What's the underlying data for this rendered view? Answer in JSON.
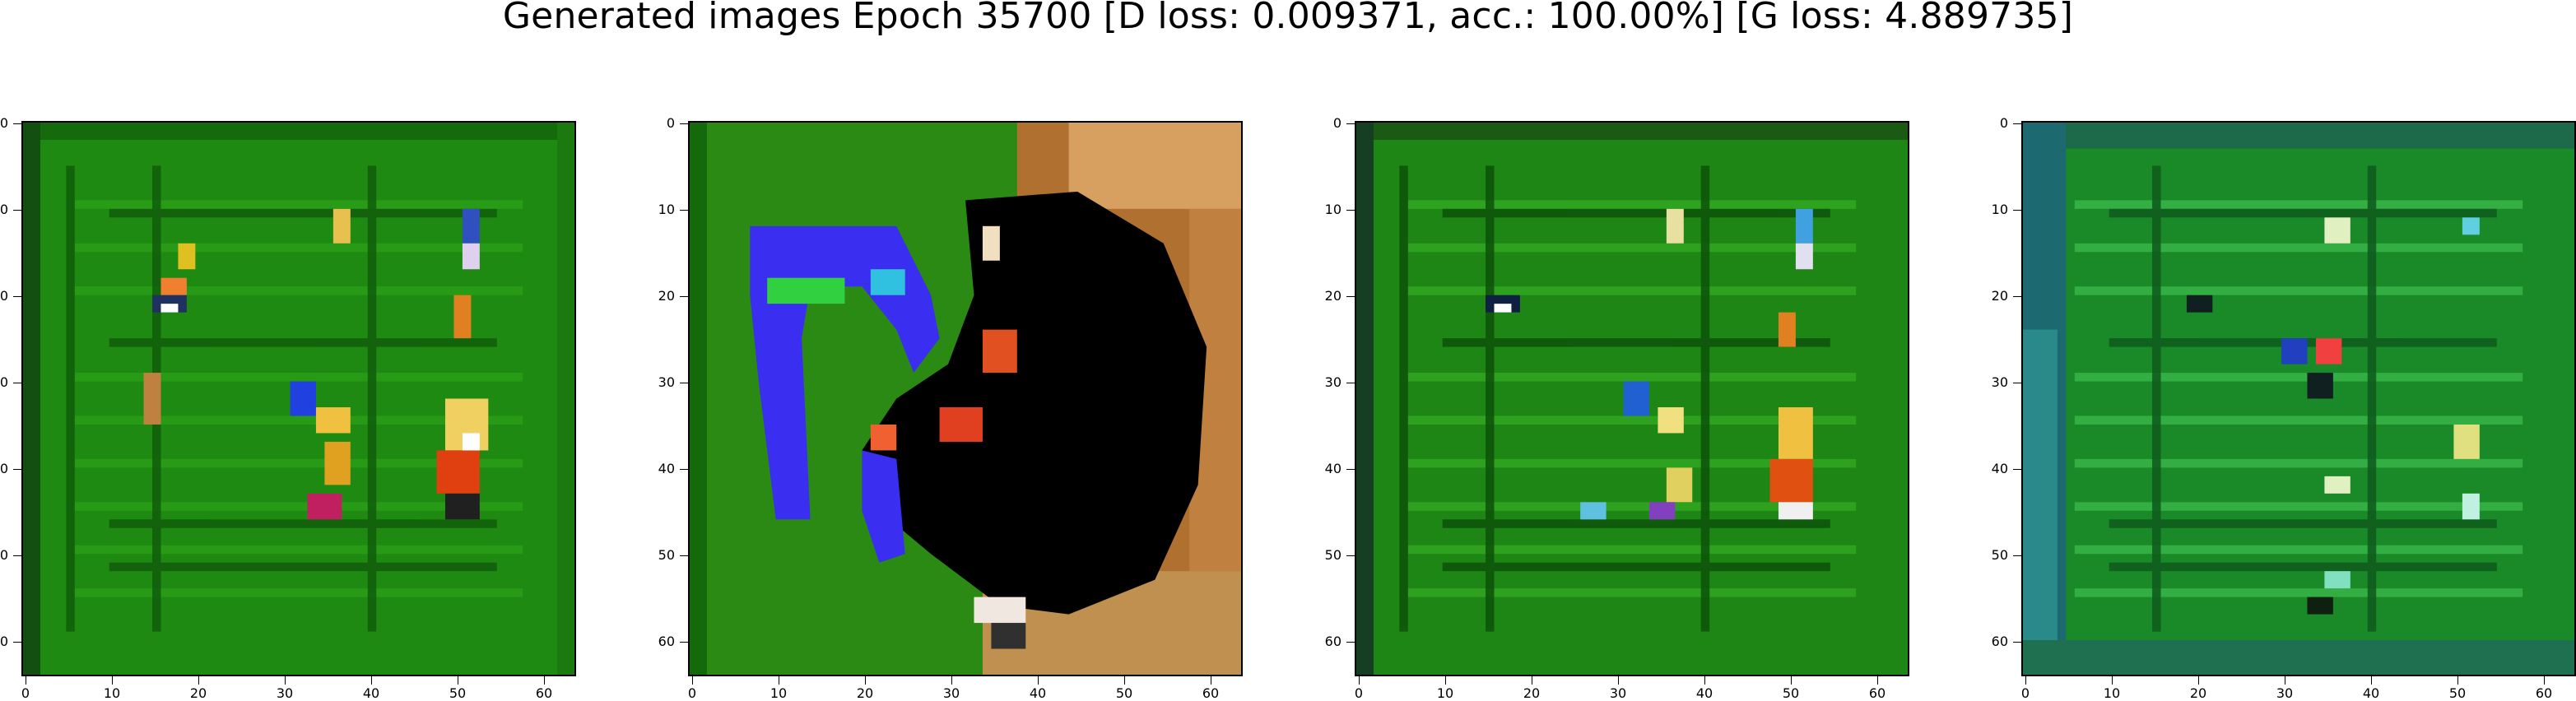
{
  "figure": {
    "title": "Generated images Epoch 35700 [D loss: 0.009371, acc.: 100.00%] [G loss: 4.889735]"
  },
  "axes": {
    "y_ticks": [
      "0",
      "10",
      "20",
      "30",
      "40",
      "50",
      "60"
    ],
    "x_ticks": [
      "0",
      "10",
      "20",
      "30",
      "40",
      "50",
      "60"
    ]
  },
  "panels": [
    {
      "id": "image-1",
      "palette": "green-noise"
    },
    {
      "id": "image-2",
      "palette": "blue-black-blob"
    },
    {
      "id": "image-3",
      "palette": "green-noise"
    },
    {
      "id": "image-4",
      "palette": "teal-noise"
    }
  ]
}
